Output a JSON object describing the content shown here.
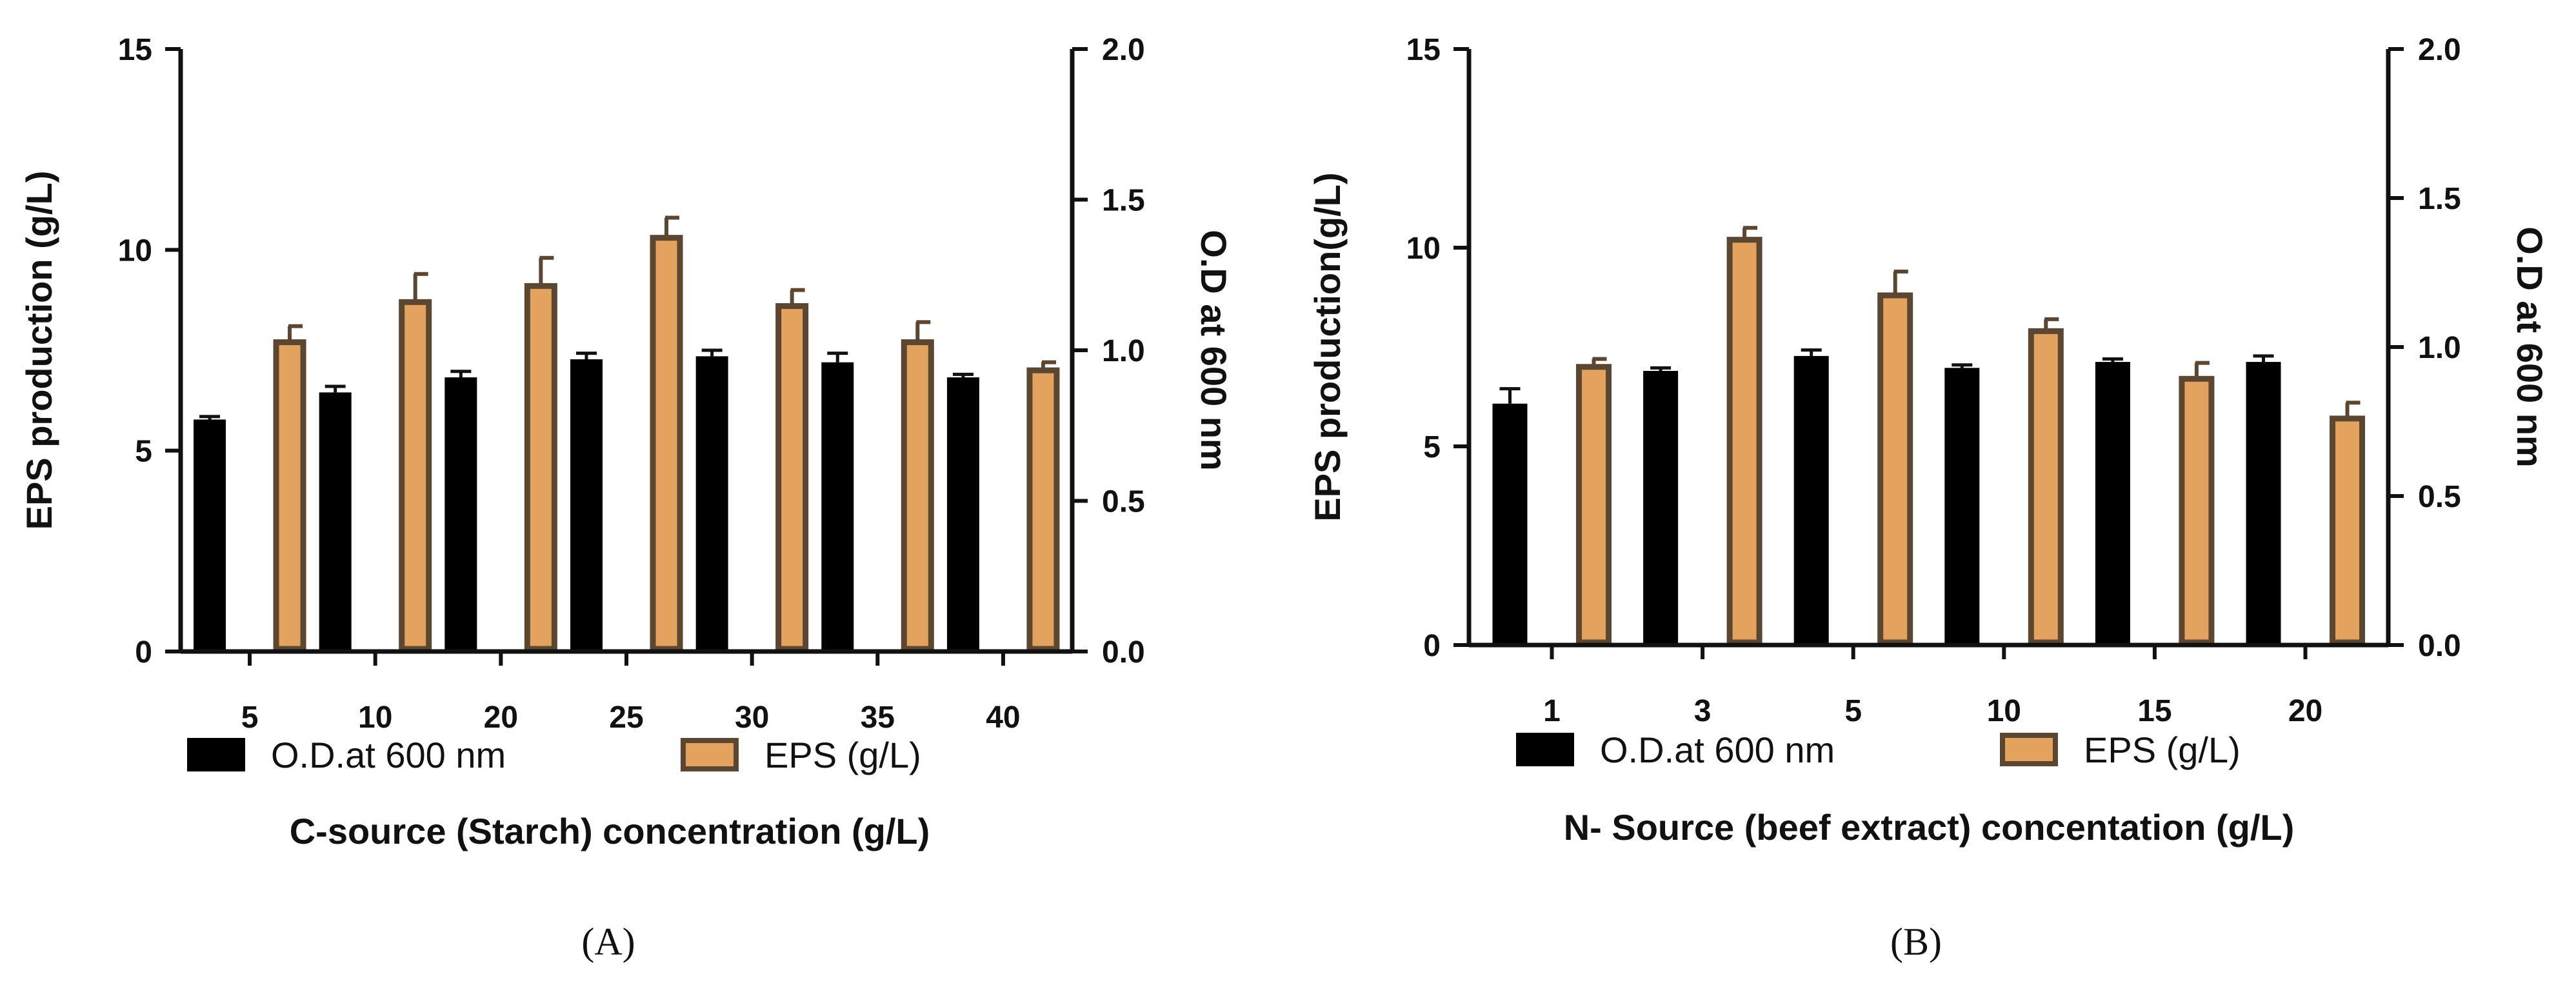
{
  "colors": {
    "od_bar": "#000000",
    "eps_fill": "#E3A35F",
    "eps_stroke": "#5A4631",
    "axis": "#111111"
  },
  "chart_data": [
    {
      "type": "bar",
      "panel_label": "(A)",
      "categories": [
        "5",
        "10",
        "20",
        "25",
        "30",
        "35",
        "40"
      ],
      "xlabel": "C-source (Starch) concentration (g/L)",
      "ylabel": "EPS production (g/L)",
      "y2label": "O.D at 600 nm",
      "ylim": [
        0,
        15
      ],
      "y2lim": [
        0,
        2.0
      ],
      "yticks": [
        "0",
        "5",
        "10",
        "15"
      ],
      "y2ticks": [
        "0.0",
        "0.5",
        "1.0",
        "1.5",
        "2.0"
      ],
      "legend": [
        "O.D.at 600 nm",
        "EPS (g/L)"
      ],
      "legend_position": "bottom",
      "grid": false,
      "series": [
        {
          "name": "O.D.at 600 nm",
          "axis": "right",
          "values": [
            0.77,
            0.86,
            0.91,
            0.97,
            0.98,
            0.96,
            0.91
          ],
          "errors": [
            0.01,
            0.02,
            0.02,
            0.02,
            0.02,
            0.03,
            0.01
          ]
        },
        {
          "name": "EPS (g/L)",
          "axis": "left",
          "values": [
            7.7,
            8.7,
            9.1,
            10.3,
            8.6,
            7.7,
            7.0
          ],
          "errors": [
            0.4,
            0.7,
            0.7,
            0.5,
            0.4,
            0.5,
            0.2
          ]
        }
      ]
    },
    {
      "type": "bar",
      "panel_label": "(B)",
      "categories": [
        "1",
        "3",
        "5",
        "10",
        "15",
        "20"
      ],
      "xlabel": "N- Source (beef extract) concentation (g/L)",
      "ylabel": "EPS production(g/L)",
      "y2label": "O.D at 600 nm",
      "ylim": [
        0,
        15
      ],
      "y2lim": [
        0,
        2.0
      ],
      "yticks": [
        "0",
        "5",
        "10",
        "15"
      ],
      "y2ticks": [
        "0.0",
        "0.5",
        "1.0",
        "1.5",
        "2.0"
      ],
      "legend": [
        "O.D.at 600 nm",
        "EPS (g/L)"
      ],
      "legend_position": "bottom",
      "grid": false,
      "series": [
        {
          "name": "O.D.at 600 nm",
          "axis": "right",
          "values": [
            0.81,
            0.92,
            0.97,
            0.93,
            0.95,
            0.95
          ],
          "errors": [
            0.05,
            0.01,
            0.02,
            0.01,
            0.01,
            0.02
          ]
        },
        {
          "name": "EPS (g/L)",
          "axis": "left",
          "values": [
            7.0,
            10.2,
            8.8,
            7.9,
            6.7,
            5.7
          ],
          "errors": [
            0.2,
            0.3,
            0.6,
            0.3,
            0.4,
            0.4
          ]
        }
      ]
    }
  ]
}
